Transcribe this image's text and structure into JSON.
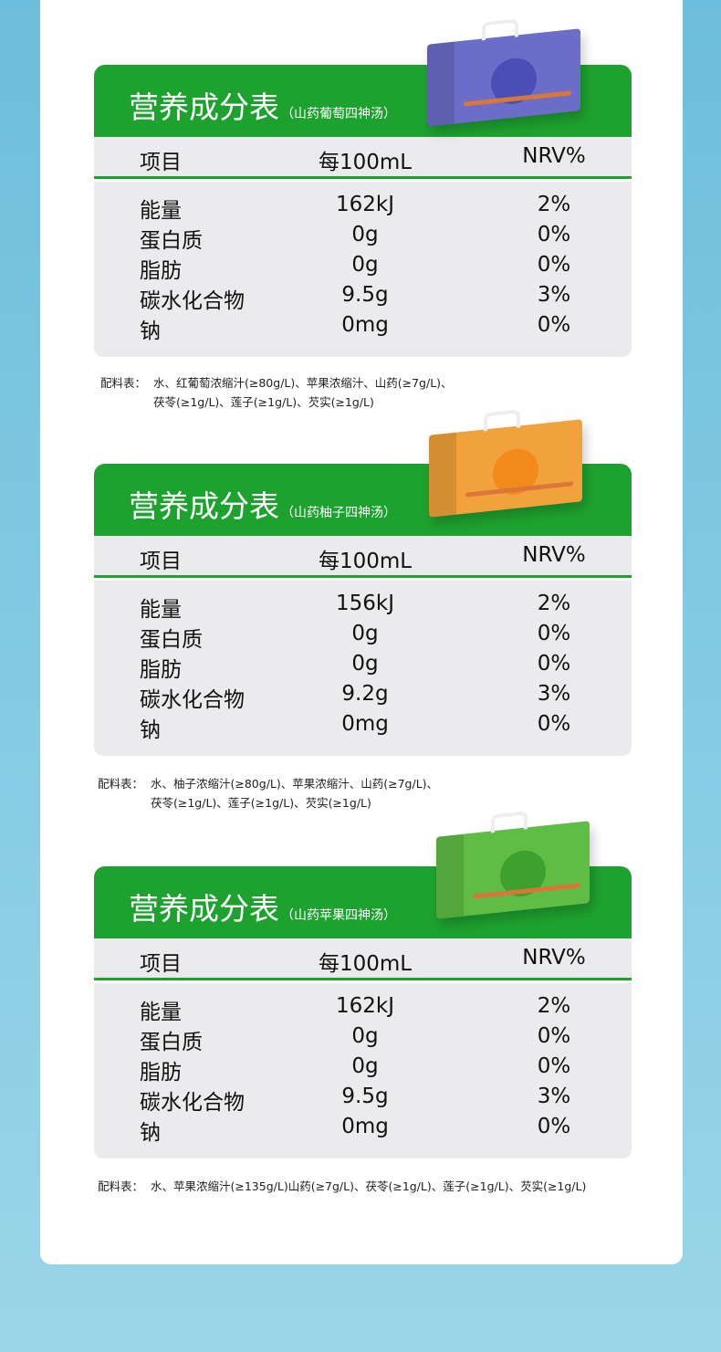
{
  "heading": "营养成分表",
  "columns": {
    "item": "项目",
    "per100": "每100mL",
    "nrv": "NRV%"
  },
  "ingredients_label": "配料表：",
  "colors": {
    "green": "#1ea22f",
    "grape_box": "#6b6dc9",
    "pomelo_box": "#f2a23c",
    "apple_box": "#5fbd45"
  },
  "tables": [
    {
      "subtitle": "（山药葡萄四神汤）",
      "rows": [
        {
          "name": "能量",
          "value": "162kJ",
          "nrv": "2%"
        },
        {
          "name": "蛋白质",
          "value": "0g",
          "nrv": "0%"
        },
        {
          "name": "脂肪",
          "value": "0g",
          "nrv": "0%"
        },
        {
          "name": "碳水化合物",
          "value": "9.5g",
          "nrv": "3%"
        },
        {
          "name": "钠",
          "value": "0mg",
          "nrv": "0%"
        }
      ],
      "ingredients_line1": "水、红葡萄浓缩汁(≥80g/L)、苹果浓缩汁、山药(≥7g/L)、",
      "ingredients_line2": "茯苓(≥1g/L)、莲子(≥1g/L)、芡实(≥1g/L)"
    },
    {
      "subtitle": "（山药柚子四神汤）",
      "rows": [
        {
          "name": "能量",
          "value": "156kJ",
          "nrv": "2%"
        },
        {
          "name": "蛋白质",
          "value": "0g",
          "nrv": "0%"
        },
        {
          "name": "脂肪",
          "value": "0g",
          "nrv": "0%"
        },
        {
          "name": "碳水化合物",
          "value": "9.2g",
          "nrv": "3%"
        },
        {
          "name": "钠",
          "value": "0mg",
          "nrv": "0%"
        }
      ],
      "ingredients_line1": "水、柚子浓缩汁(≥80g/L)、苹果浓缩汁、山药(≥7g/L)、",
      "ingredients_line2": "茯苓(≥1g/L)、莲子(≥1g/L)、芡实(≥1g/L)"
    },
    {
      "subtitle": "（山药苹果四神汤）",
      "rows": [
        {
          "name": "能量",
          "value": "162kJ",
          "nrv": "2%"
        },
        {
          "name": "蛋白质",
          "value": "0g",
          "nrv": "0%"
        },
        {
          "name": "脂肪",
          "value": "0g",
          "nrv": "0%"
        },
        {
          "name": "碳水化合物",
          "value": "9.5g",
          "nrv": "3%"
        },
        {
          "name": "钠",
          "value": "0mg",
          "nrv": "0%"
        }
      ],
      "ingredients_line1": "水、苹果浓缩汁(≥135g/L)山药(≥7g/L)、茯苓(≥1g/L)、莲子(≥1g/L)、芡实(≥1g/L)",
      "ingredients_line2": ""
    }
  ]
}
